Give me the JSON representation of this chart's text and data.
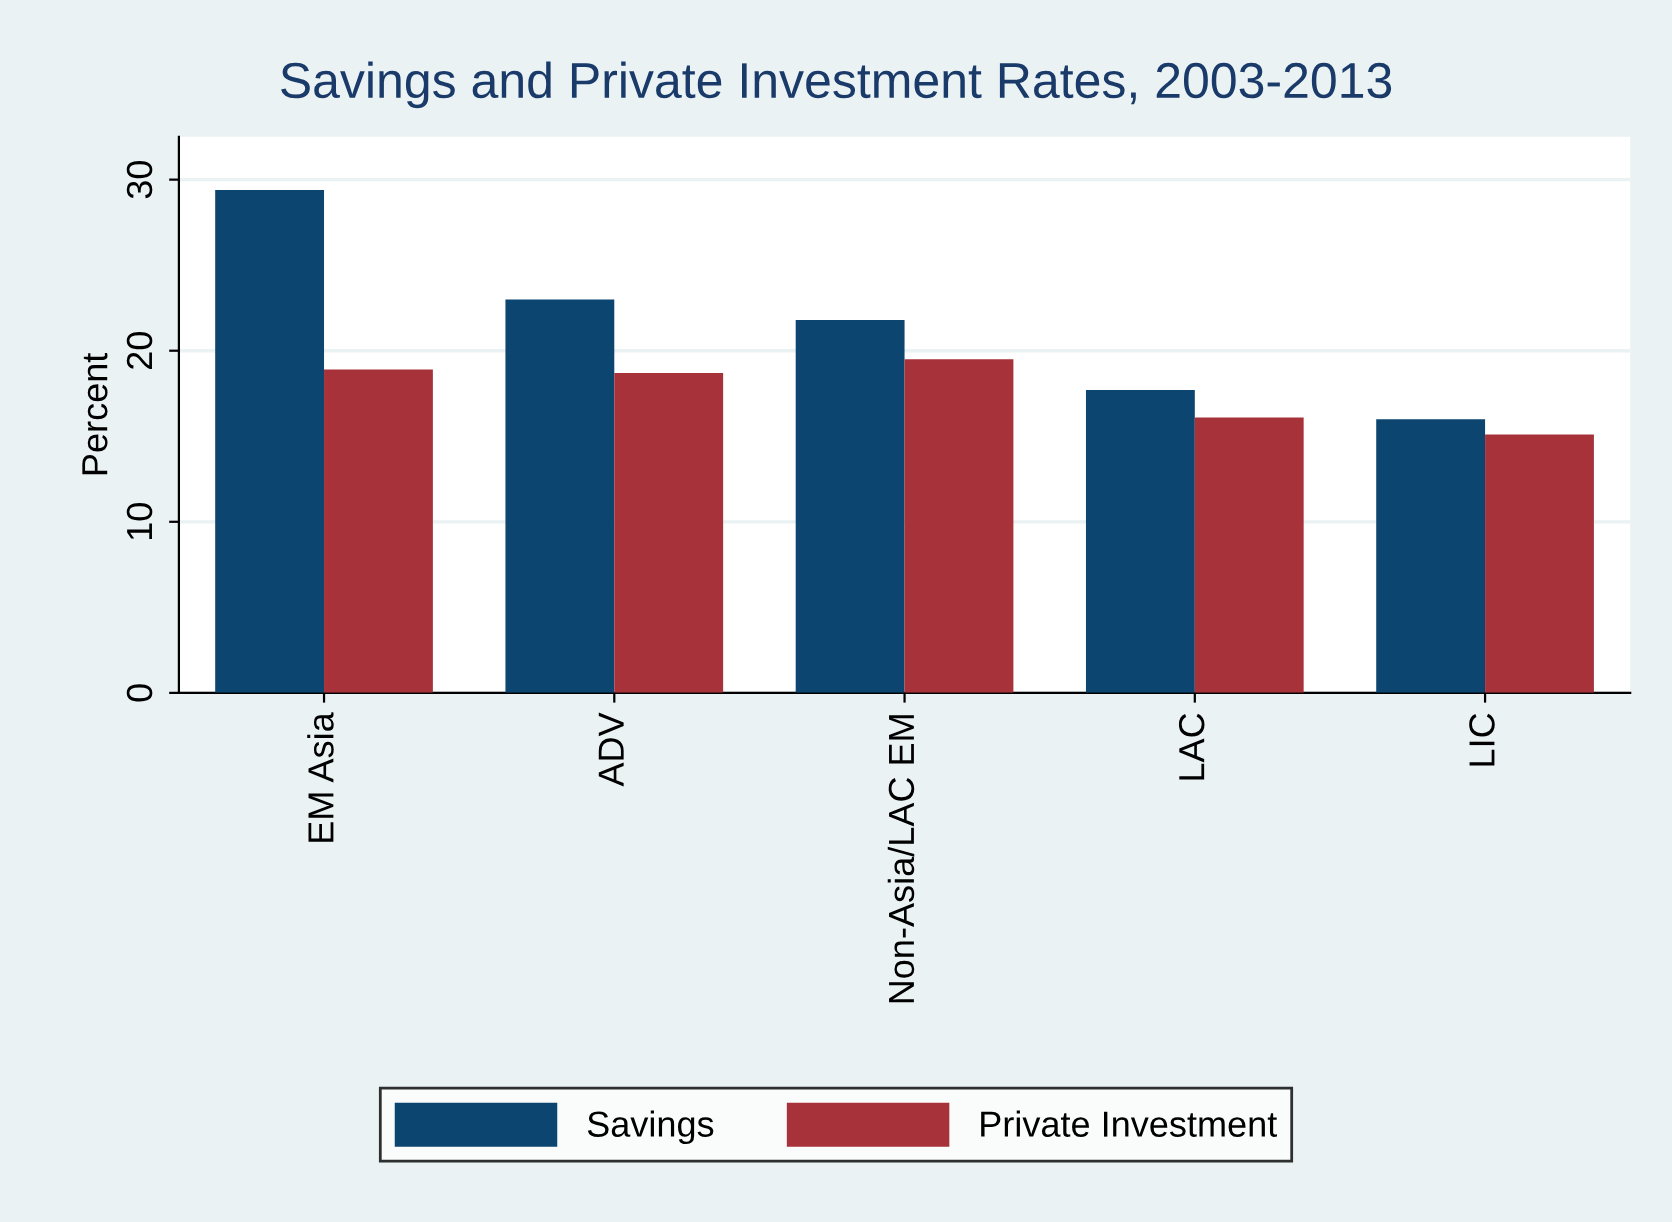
{
  "chart_data": {
    "type": "bar",
    "title": "Savings and Private Investment Rates, 2003-2013",
    "ylabel": "Percent",
    "categories": [
      "EM Asia",
      "ADV",
      "Non-Asia/LAC EM",
      "LAC",
      "LIC"
    ],
    "series": [
      {
        "name": "Savings",
        "color": "#0b4570",
        "values": [
          29.4,
          23.0,
          21.8,
          17.7,
          16.0
        ]
      },
      {
        "name": "Private Investment",
        "color": "#a8323a",
        "values": [
          18.9,
          18.7,
          19.5,
          16.1,
          15.1
        ]
      }
    ],
    "ylim": [
      0,
      32.5
    ],
    "yticks": [
      0,
      10,
      20,
      30
    ],
    "grid": "y",
    "legend": "bottom"
  }
}
